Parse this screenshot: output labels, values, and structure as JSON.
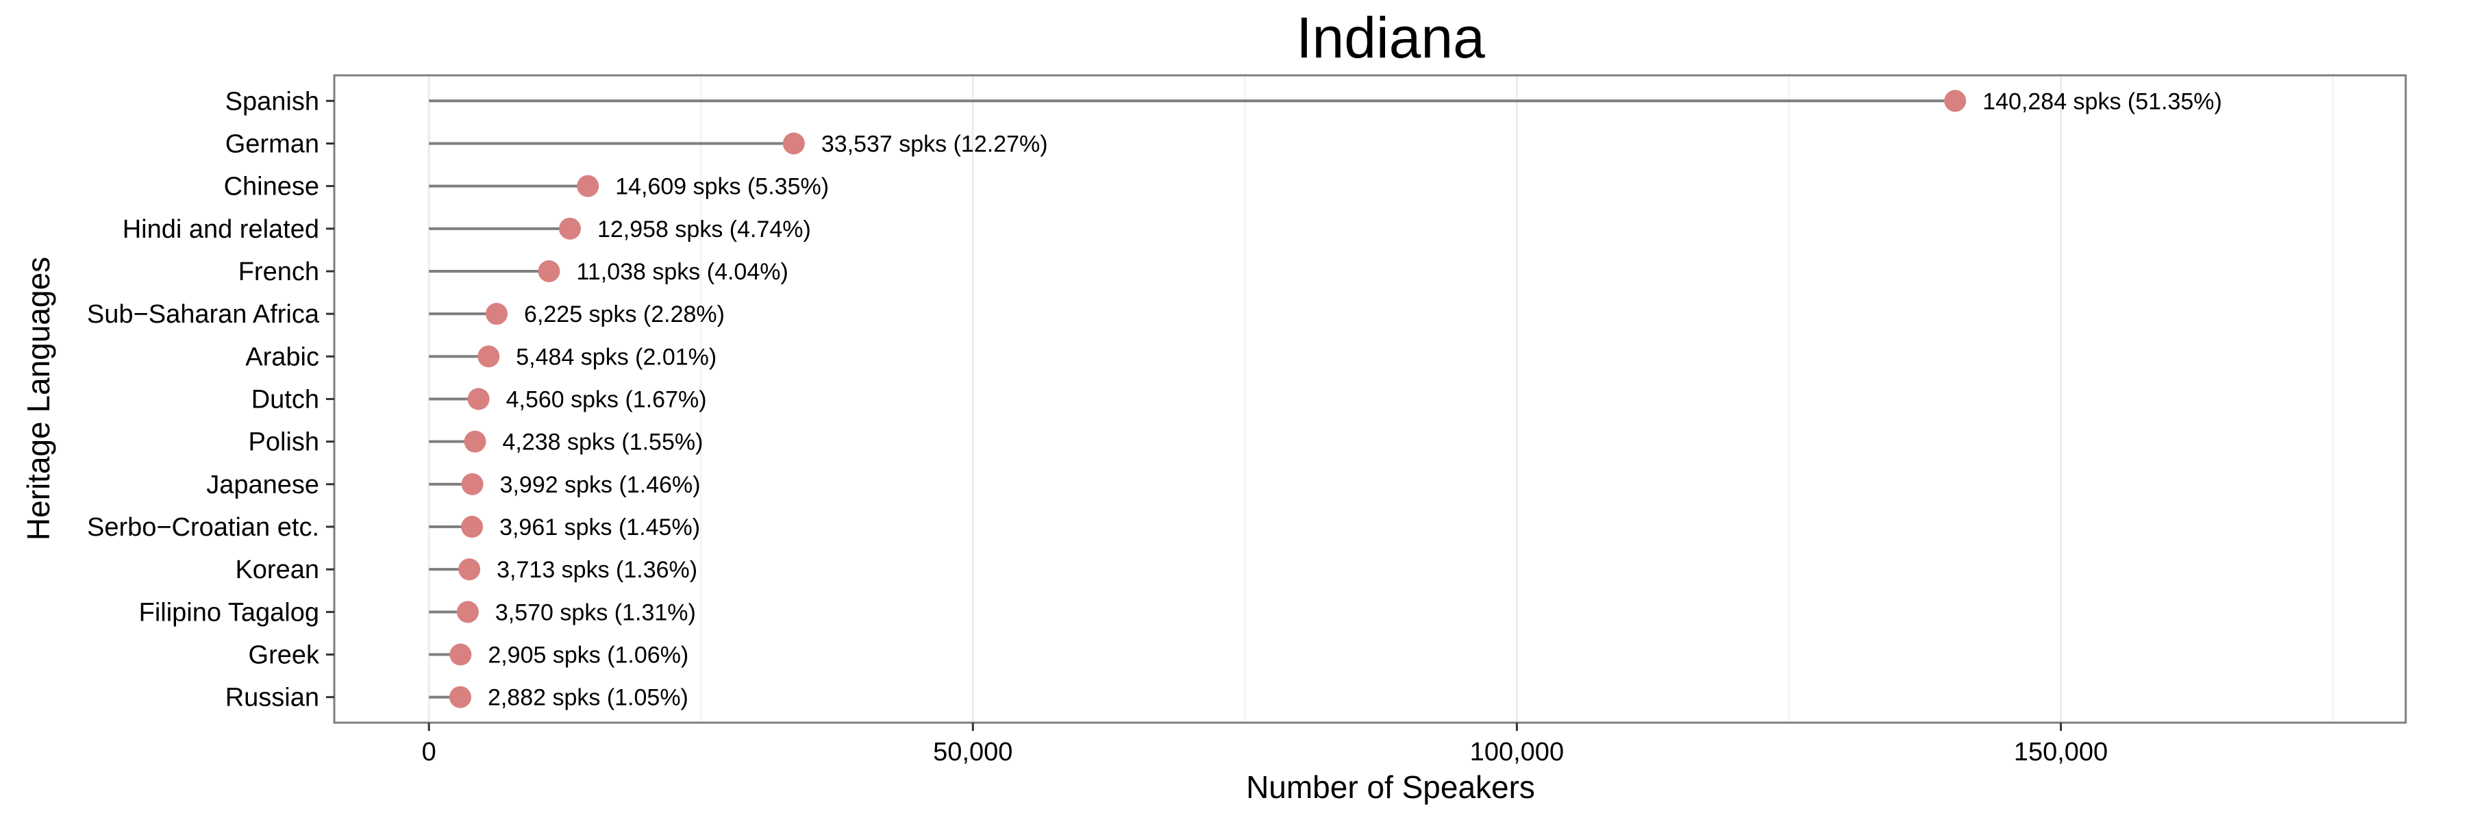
{
  "chart_data": {
    "type": "lollipop",
    "title": "Indiana",
    "xlabel": "Number of Speakers",
    "ylabel": "Heritage Languages",
    "xlim": [
      -8700,
      181700
    ],
    "x_ticks": [
      0,
      50000,
      100000,
      150000
    ],
    "x_tick_labels": [
      "0",
      "50,000",
      "100,000",
      "150,000"
    ],
    "grid": true,
    "legend": "none",
    "colors": {
      "point": "#d98080",
      "segment": "#7f7f7f",
      "grid": "#ececec",
      "panel_border": "#7f7f7f"
    },
    "categories": [
      "Spanish",
      "German",
      "Chinese",
      "Hindi and related",
      "French",
      "Sub−Saharan Africa",
      "Arabic",
      "Dutch",
      "Polish",
      "Japanese",
      "Serbo−Croatian etc.",
      "Korean",
      "Filipino Tagalog",
      "Greek",
      "Russian"
    ],
    "values": [
      140284,
      33537,
      14609,
      12958,
      11038,
      6225,
      5484,
      4560,
      4238,
      3992,
      3961,
      3713,
      3570,
      2905,
      2882
    ],
    "data_labels": [
      "140,284 spks (51.35%)",
      "33,537 spks (12.27%)",
      "14,609 spks (5.35%)",
      "12,958 spks (4.74%)",
      "11,038 spks (4.04%)",
      "6,225 spks (2.28%)",
      "5,484 spks (2.01%)",
      "4,560 spks (1.67%)",
      "4,238 spks (1.55%)",
      "3,992 spks (1.46%)",
      "3,961 spks (1.45%)",
      "3,713 spks (1.36%)",
      "3,570 spks (1.31%)",
      "2,905 spks (1.06%)",
      "2,882 spks (1.05%)"
    ]
  }
}
